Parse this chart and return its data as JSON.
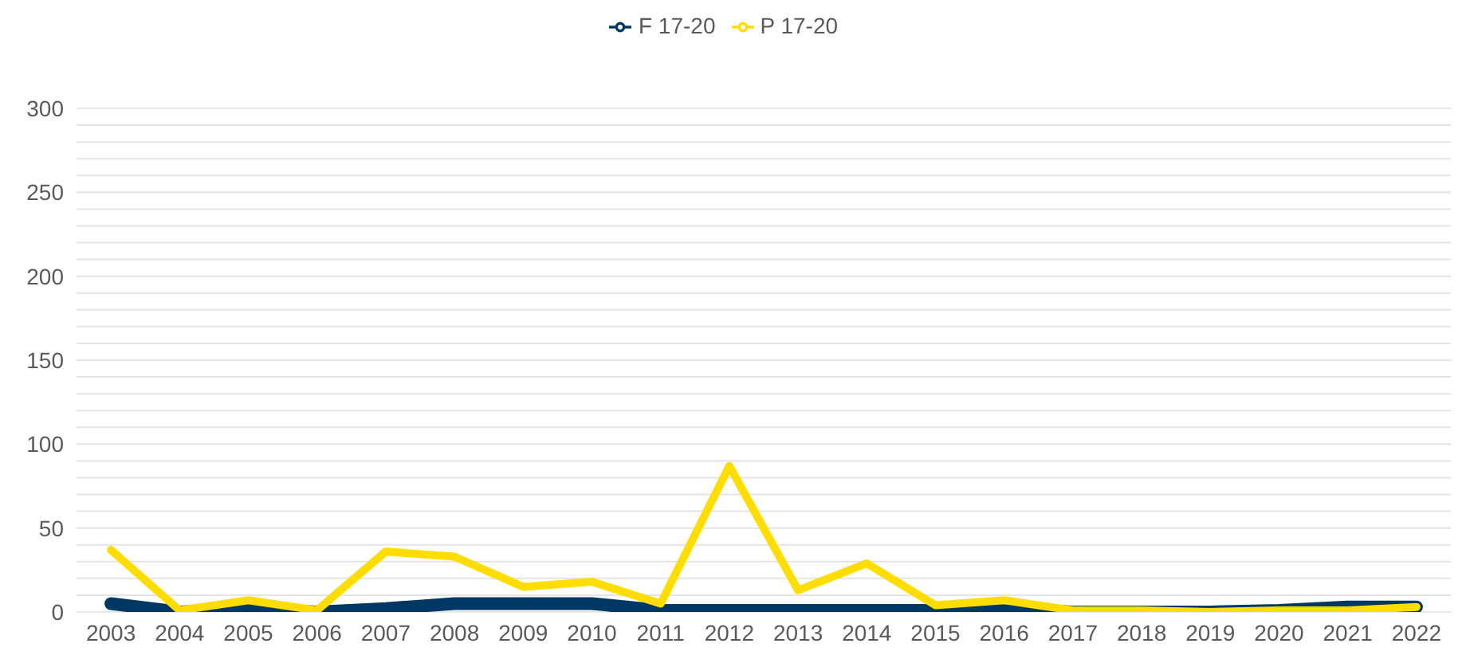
{
  "chart_data": {
    "type": "line",
    "categories": [
      "2003",
      "2004",
      "2005",
      "2006",
      "2007",
      "2008",
      "2009",
      "2010",
      "2011",
      "2012",
      "2013",
      "2014",
      "2015",
      "2016",
      "2017",
      "2018",
      "2019",
      "2020",
      "2021",
      "2022"
    ],
    "series": [
      {
        "name": "F 17-20",
        "color": "#003865",
        "values": [
          5,
          0,
          2,
          0,
          2,
          5,
          5,
          5,
          1,
          1,
          1,
          1,
          1,
          2,
          0,
          0,
          0,
          1,
          3,
          3
        ]
      },
      {
        "name": "P 17-20",
        "color": "#ffdd00",
        "values": [
          37,
          1,
          7,
          1,
          36,
          33,
          15,
          18,
          5,
          87,
          13,
          29,
          4,
          7,
          1,
          1,
          0,
          1,
          1,
          3
        ]
      }
    ],
    "ylim": [
      0,
      300
    ],
    "yticks": [
      0,
      {
        "value": 10,
        "label": null
      },
      {
        "value": 20,
        "label": null
      },
      {
        "value": 30,
        "label": null
      },
      {
        "value": 40,
        "label": null
      },
      50,
      {
        "value": 60,
        "label": null
      },
      {
        "value": 70,
        "label": null
      },
      {
        "value": 80,
        "label": null
      },
      {
        "value": 90,
        "label": null
      },
      100,
      {
        "value": 110,
        "label": null
      },
      {
        "value": 120,
        "label": null
      },
      {
        "value": 130,
        "label": null
      },
      {
        "value": 140,
        "label": null
      },
      150,
      {
        "value": 160,
        "label": null
      },
      {
        "value": 170,
        "label": null
      },
      {
        "value": 180,
        "label": null
      },
      {
        "value": 190,
        "label": null
      },
      200,
      {
        "value": 210,
        "label": null
      },
      {
        "value": 220,
        "label": null
      },
      {
        "value": 230,
        "label": null
      },
      {
        "value": 240,
        "label": null
      },
      250,
      {
        "value": 260,
        "label": null
      },
      {
        "value": 270,
        "label": null
      },
      {
        "value": 280,
        "label": null
      },
      {
        "value": 290,
        "label": null
      },
      300
    ],
    "grid": "y",
    "legend": "top",
    "marker": "none",
    "line_style": "solid"
  }
}
